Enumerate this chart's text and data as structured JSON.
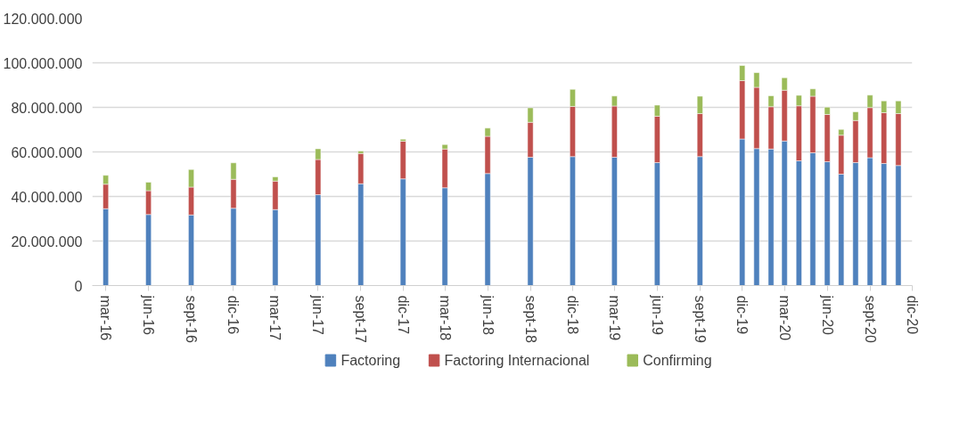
{
  "chart_data": {
    "type": "bar",
    "stacked": true,
    "x": [
      "2016-03",
      "2016-06",
      "2016-09",
      "2016-12",
      "2017-03",
      "2017-06",
      "2017-09",
      "2017-12",
      "2018-03",
      "2018-06",
      "2018-09",
      "2018-12",
      "2019-03",
      "2019-06",
      "2019-09",
      "2019-12",
      "2020-01",
      "2020-02",
      "2020-03",
      "2020-04",
      "2020-05",
      "2020-06",
      "2020-07",
      "2020-08",
      "2020-09",
      "2020-10",
      "2020-11"
    ],
    "series": [
      {
        "name": "Factoring",
        "color": "#4f81bd",
        "values": [
          34500000,
          31900000,
          31700000,
          34700000,
          34100000,
          40800000,
          45700000,
          47900000,
          43900000,
          50300000,
          57600000,
          57900000,
          57600000,
          55200000,
          57900000,
          65800000,
          61500000,
          61300000,
          64900000,
          56000000,
          59600000,
          55600000,
          50000000,
          55200000,
          57400000,
          54800000,
          53900000
        ]
      },
      {
        "name": "Factoring Internacional",
        "color": "#c0504d",
        "values": [
          11000000,
          10700000,
          12500000,
          13000000,
          12800000,
          15800000,
          13600000,
          16900000,
          17400000,
          16700000,
          15700000,
          22500000,
          23000000,
          20800000,
          19300000,
          26200000,
          27500000,
          19000000,
          22800000,
          24700000,
          25400000,
          21200000,
          17500000,
          18900000,
          22500000,
          22800000,
          23300000
        ]
      },
      {
        "name": "Confirming",
        "color": "#9bbb59",
        "values": [
          4000000,
          3800000,
          7900000,
          7400000,
          1900000,
          4800000,
          1100000,
          900000,
          2000000,
          3700000,
          6500000,
          7700000,
          4500000,
          5000000,
          7800000,
          6800000,
          6600000,
          4900000,
          5600000,
          4700000,
          3300000,
          3300000,
          2600000,
          3900000,
          5600000,
          5300000,
          5700000
        ]
      }
    ],
    "xlim": [
      "2016-02",
      "2020-12"
    ],
    "xticks": [
      {
        "value": "2016-03",
        "label": "mar-16"
      },
      {
        "value": "2016-06",
        "label": "jun-16"
      },
      {
        "value": "2016-09",
        "label": "sept-16"
      },
      {
        "value": "2016-12",
        "label": "dic-16"
      },
      {
        "value": "2017-03",
        "label": "mar-17"
      },
      {
        "value": "2017-06",
        "label": "jun-17"
      },
      {
        "value": "2017-09",
        "label": "sept-17"
      },
      {
        "value": "2017-12",
        "label": "dic-17"
      },
      {
        "value": "2018-03",
        "label": "mar-18"
      },
      {
        "value": "2018-06",
        "label": "jun-18"
      },
      {
        "value": "2018-09",
        "label": "sept-18"
      },
      {
        "value": "2018-12",
        "label": "dic-18"
      },
      {
        "value": "2019-03",
        "label": "mar-19"
      },
      {
        "value": "2019-06",
        "label": "jun-19"
      },
      {
        "value": "2019-09",
        "label": "sept-19"
      },
      {
        "value": "2019-12",
        "label": "dic-19"
      },
      {
        "value": "2020-03",
        "label": "mar-20"
      },
      {
        "value": "2020-06",
        "label": "jun-20"
      },
      {
        "value": "2020-09",
        "label": "sept-20"
      },
      {
        "value": "2020-12",
        "label": "dic-20"
      }
    ],
    "ylim": [
      0,
      120000000
    ],
    "yticks": [
      0,
      {
        "value": 20000000,
        "label": "20.000.000"
      },
      {
        "value": 40000000,
        "label": "40.000.000"
      },
      {
        "value": 60000000,
        "label": "60.000.000"
      },
      {
        "value": 80000000,
        "label": "80.000.000"
      },
      {
        "value": 100000000,
        "label": "100.000.000"
      },
      {
        "value": 120000000,
        "label": "120.000.000"
      }
    ],
    "grid": "y",
    "legend": "bottom"
  }
}
